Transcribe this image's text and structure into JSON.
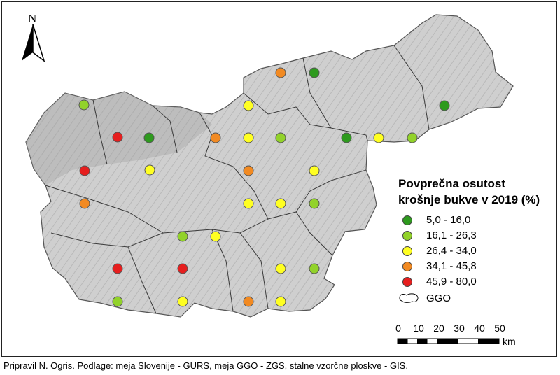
{
  "map": {
    "north_label": "N",
    "legend": {
      "title_line1": "Povprečna osutost",
      "title_line2": "krošnje bukve v 2019 (%)",
      "classes": [
        {
          "label": "5,0 - 16,0",
          "color": "#2e9a1e"
        },
        {
          "label": "16,1 - 26,3",
          "color": "#92d22a"
        },
        {
          "label": "26,4 - 34,0",
          "color": "#ffff22"
        },
        {
          "label": "34,1 - 45,8",
          "color": "#f28a22"
        },
        {
          "label": "45,9 - 80,0",
          "color": "#e61e1e"
        }
      ],
      "ggo_label": "GGO"
    },
    "scale": {
      "ticks": [
        "0",
        "10",
        "20",
        "30",
        "40",
        "50"
      ],
      "unit": "km"
    },
    "caption": "Pripravil N. Ogris. Podlage: meja Slovenije - GURS, meja GGO - ZGS, stalne vzorčne ploskve - GIS."
  }
}
